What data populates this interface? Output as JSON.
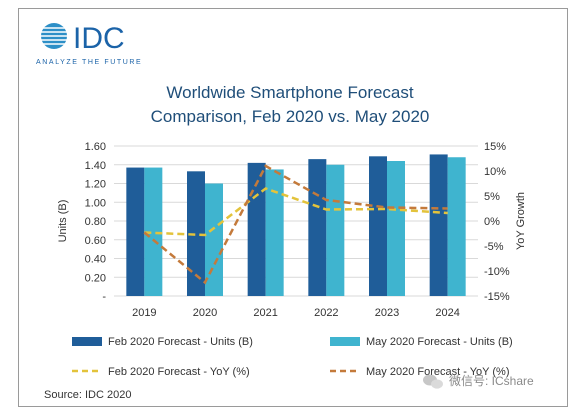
{
  "logo": {
    "name": "IDC",
    "tagline": "ANALYZE THE FUTURE"
  },
  "chart_data": {
    "type": "bar",
    "title_lines": [
      "Worldwide Smartphone Forecast",
      "Comparison, Feb 2020 vs. May 2020"
    ],
    "categories": [
      "2019",
      "2020",
      "2021",
      "2022",
      "2023",
      "2024"
    ],
    "ylabel": "Units (B)",
    "y2label": "YoY Growth",
    "yticks": [
      "1.60",
      "1.40",
      "1.20",
      "1.00",
      "0.80",
      "0.60",
      "0.40",
      "0.20",
      "-"
    ],
    "y2ticks": [
      "15%",
      "10%",
      "5%",
      "0%",
      "-5%",
      "-10%",
      "-15%"
    ],
    "ylim": [
      0,
      1.6
    ],
    "y2lim": [
      -15,
      15
    ],
    "grid": true,
    "legend_position": "bottom",
    "series": [
      {
        "name": "Feb 2020 Forecast - Units (B)",
        "type": "bar",
        "axis": "left",
        "color": "#1f5d99",
        "values": [
          1.37,
          1.33,
          1.42,
          1.46,
          1.49,
          1.51
        ]
      },
      {
        "name": "May 2020 Forecast - Units (B)",
        "type": "bar",
        "axis": "left",
        "color": "#3fb4cf",
        "values": [
          1.37,
          1.2,
          1.35,
          1.4,
          1.44,
          1.48
        ]
      },
      {
        "name": "Feb 2020 Forecast - YoY (%)",
        "type": "line",
        "style": "dashed",
        "axis": "right",
        "color": "#e3c33b",
        "values": [
          -2.3,
          -2.8,
          6.5,
          2.3,
          2.4,
          1.6
        ]
      },
      {
        "name": "May 2020 Forecast - YoY (%)",
        "type": "line",
        "style": "dashed",
        "axis": "right",
        "color": "#c47a3b",
        "values": [
          -2.3,
          -12.3,
          11.0,
          4.2,
          2.7,
          2.5
        ]
      }
    ],
    "source": "Source: IDC 2020"
  },
  "watermark": "微信号: ICshare"
}
